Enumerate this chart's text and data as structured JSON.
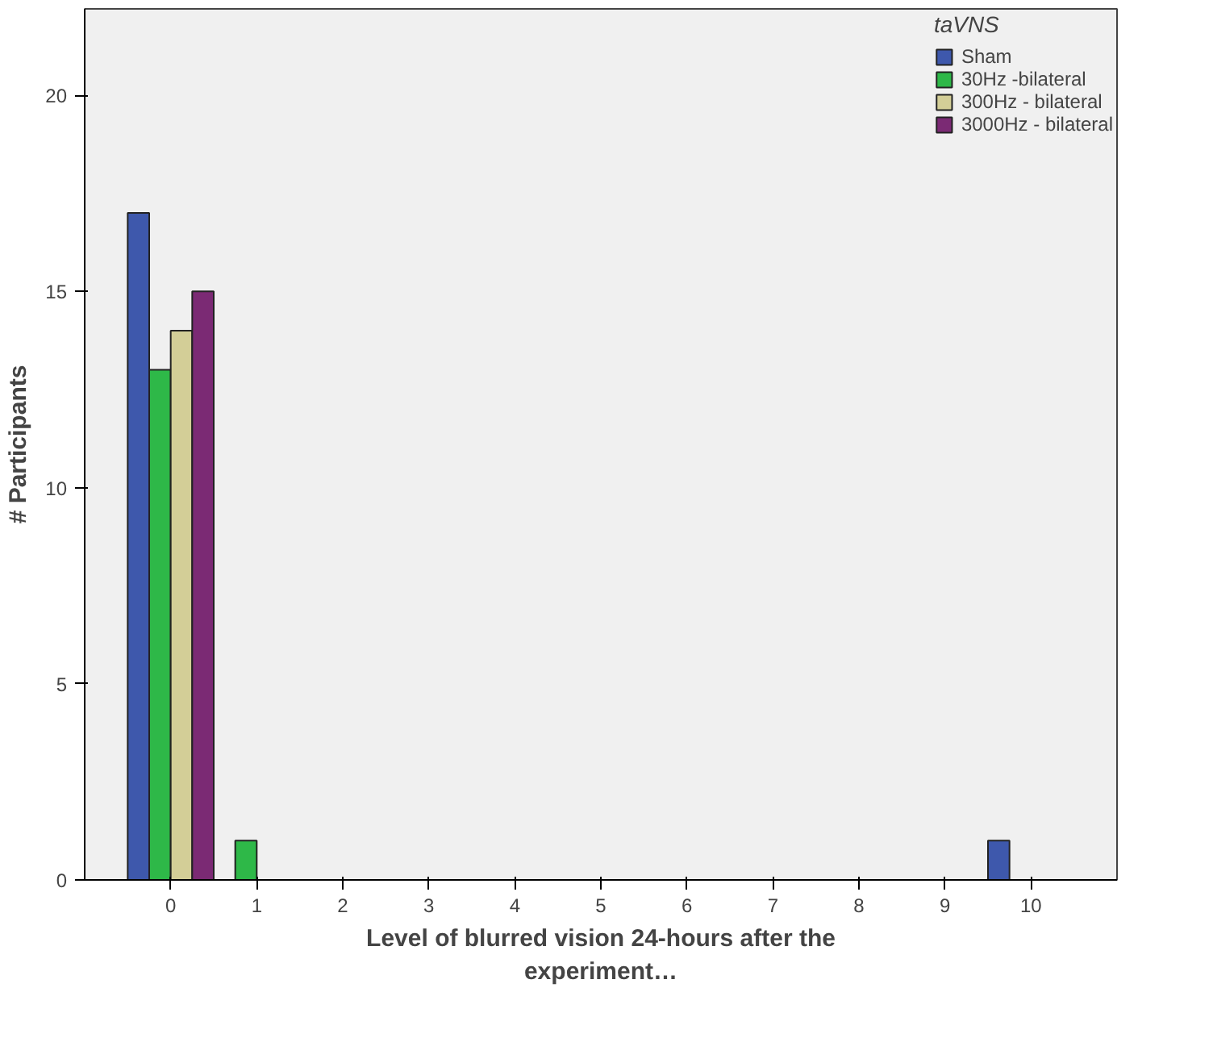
{
  "chart_data": {
    "type": "bar",
    "xlabel": "Level of blurred vision 24-hours after the\nexperiment…",
    "ylabel": "# Participants",
    "legend_title": "taVNS",
    "legend": "top right",
    "categories": [
      "0",
      "1",
      "2",
      "3",
      "4",
      "5",
      "6",
      "7",
      "8",
      "9",
      "10"
    ],
    "series": [
      {
        "name": "Sham",
        "color": "#3e58ac",
        "values": [
          17,
          null,
          null,
          null,
          null,
          null,
          null,
          null,
          null,
          null,
          1
        ]
      },
      {
        "name": "30Hz -bilateral",
        "color": "#2eb848",
        "values": [
          13,
          1,
          null,
          null,
          null,
          null,
          null,
          null,
          null,
          null,
          null
        ]
      },
      {
        "name": "300Hz - bilateral",
        "color": "#d3ce97",
        "values": [
          14,
          null,
          null,
          null,
          null,
          null,
          null,
          null,
          null,
          null,
          null
        ]
      },
      {
        "name": "3000Hz - bilateral",
        "color": "#7b2a74",
        "values": [
          15,
          null,
          null,
          null,
          null,
          null,
          null,
          null,
          null,
          null,
          null
        ]
      }
    ],
    "ylim": [
      0,
      22.2
    ],
    "yticks": [
      0,
      5,
      10,
      15,
      20
    ],
    "grid": false
  }
}
